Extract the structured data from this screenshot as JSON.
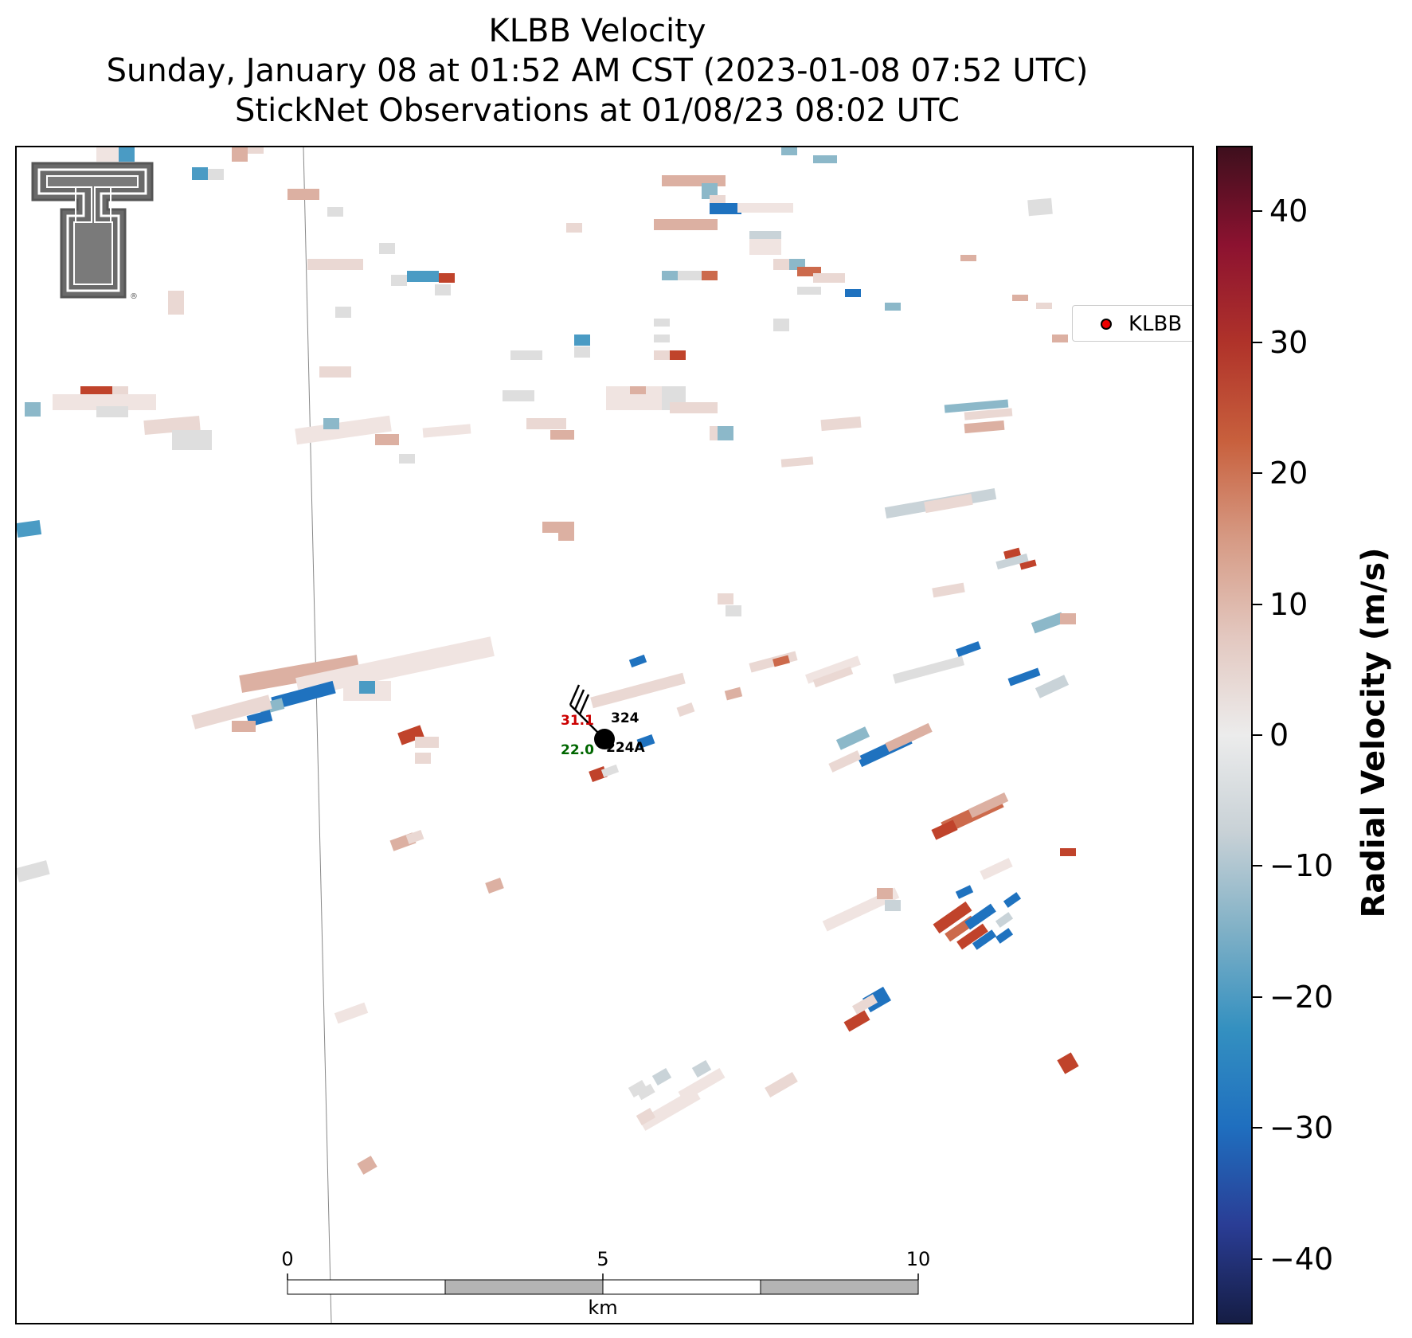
{
  "title": {
    "line1": "KLBB Velocity",
    "line2": "Sunday, January 08 at 01:52 AM CST (2023-01-08 07:52 UTC)",
    "line3": "StickNet Observations at 01/08/23 08:02 UTC"
  },
  "legend": {
    "label": "KLBB",
    "marker_color": "#ee0000"
  },
  "colorbar": {
    "label": "Radial Velocity (m/s)",
    "min": -45,
    "max": 45,
    "ticks": [
      "40",
      "30",
      "20",
      "10",
      "0",
      "−10",
      "−20",
      "−30",
      "−40"
    ],
    "tick_values": [
      40,
      30,
      20,
      10,
      0,
      -10,
      -20,
      -30,
      -40
    ],
    "colors": [
      "#151d44",
      "#2a3d95",
      "#1f6fbf",
      "#3490c0",
      "#7fb0c6",
      "#c8d1d6",
      "#ececec",
      "#e3c8c0",
      "#d69a84",
      "#c8603d",
      "#b0332a",
      "#8c1230",
      "#3e0f1d"
    ]
  },
  "scale_bar": {
    "labels": [
      "0",
      "5",
      "10"
    ],
    "unit": "km"
  },
  "station": {
    "temp": "31.1",
    "dewpoint": "22.0",
    "id_top": "324",
    "id_bottom": "224A",
    "temp_color": "#cc0000",
    "dewpoint_color": "#006600"
  },
  "logo": {
    "icon": "texas-tech-double-t-logo"
  }
}
